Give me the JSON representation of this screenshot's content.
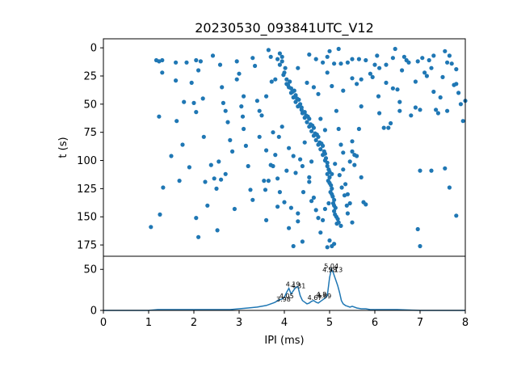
{
  "chart_data": [
    {
      "type": "scatter",
      "title": "20230530_093841UTC_V12",
      "xlabel": "",
      "ylabel": "t (s)",
      "xlim": [
        0,
        8
      ],
      "ylim": [
        185,
        -8
      ],
      "y_inverted": true,
      "yticks": [
        0,
        25,
        50,
        75,
        100,
        125,
        150,
        175
      ],
      "grid": false,
      "color": "#1f77b4",
      "points": [
        [
          1.17,
          11
        ],
        [
          1.23,
          12
        ],
        [
          1.3,
          11
        ],
        [
          1.3,
          22
        ],
        [
          1.23,
          61
        ],
        [
          1.32,
          124
        ],
        [
          1.5,
          96
        ],
        [
          1.6,
          13
        ],
        [
          1.6,
          29
        ],
        [
          1.62,
          65
        ],
        [
          1.68,
          118
        ],
        [
          1.75,
          86
        ],
        [
          1.78,
          48
        ],
        [
          1.84,
          13
        ],
        [
          1.9,
          106
        ],
        [
          1.95,
          31
        ],
        [
          2.05,
          11
        ],
        [
          2.0,
          49
        ],
        [
          2.05,
          57
        ],
        [
          2.05,
          151
        ],
        [
          1.05,
          159
        ],
        [
          1.25,
          148
        ],
        [
          2.1,
          168
        ],
        [
          2.15,
          12
        ],
        [
          2.2,
          45
        ],
        [
          2.22,
          79
        ],
        [
          2.25,
          119
        ],
        [
          2.3,
          140
        ],
        [
          2.38,
          104
        ],
        [
          2.45,
          116
        ],
        [
          2.5,
          125
        ],
        [
          2.52,
          162
        ],
        [
          2.58,
          15
        ],
        [
          2.62,
          35
        ],
        [
          2.65,
          49
        ],
        [
          2.7,
          56
        ],
        [
          2.75,
          66
        ],
        [
          2.8,
          82
        ],
        [
          2.85,
          92
        ],
        [
          2.9,
          143
        ],
        [
          2.95,
          28
        ],
        [
          3.0,
          23
        ],
        [
          3.05,
          52
        ],
        [
          3.08,
          61
        ],
        [
          3.1,
          72
        ],
        [
          3.15,
          87
        ],
        [
          3.2,
          105
        ],
        [
          3.25,
          126
        ],
        [
          3.3,
          135
        ],
        [
          3.35,
          16
        ],
        [
          3.4,
          47
        ],
        [
          3.45,
          56
        ],
        [
          3.5,
          60
        ],
        [
          3.55,
          118
        ],
        [
          3.6,
          153
        ],
        [
          3.65,
          2
        ],
        [
          3.7,
          8
        ],
        [
          3.72,
          30
        ],
        [
          3.75,
          75
        ],
        [
          3.8,
          95
        ],
        [
          2.1,
          20
        ],
        [
          2.42,
          7
        ],
        [
          2.55,
          101
        ],
        [
          2.6,
          117
        ],
        [
          2.7,
          112
        ],
        [
          2.95,
          12
        ],
        [
          3.1,
          43
        ],
        [
          3.3,
          9
        ],
        [
          3.45,
          79
        ],
        [
          3.6,
          43
        ],
        [
          3.9,
          5
        ],
        [
          3.95,
          12
        ],
        [
          4.0,
          22
        ],
        [
          4.05,
          28
        ],
        [
          4.1,
          35
        ],
        [
          4.15,
          40
        ],
        [
          4.2,
          44
        ],
        [
          4.25,
          48
        ],
        [
          4.3,
          52
        ],
        [
          4.4,
          58
        ],
        [
          4.45,
          62
        ],
        [
          4.5,
          66
        ],
        [
          4.55,
          70
        ],
        [
          4.6,
          74
        ],
        [
          4.65,
          78
        ],
        [
          4.7,
          82
        ],
        [
          4.75,
          86
        ],
        [
          4.8,
          90
        ],
        [
          4.85,
          95
        ],
        [
          4.9,
          100
        ],
        [
          4.95,
          105
        ],
        [
          5.0,
          110
        ],
        [
          5.0,
          115
        ],
        [
          5.0,
          120
        ],
        [
          5.05,
          125
        ],
        [
          5.05,
          130
        ],
        [
          5.1,
          135
        ],
        [
          5.1,
          140
        ],
        [
          5.1,
          145
        ],
        [
          5.15,
          150
        ],
        [
          5.2,
          155
        ],
        [
          5.25,
          158
        ],
        [
          4.02,
          18
        ],
        [
          4.12,
          30
        ],
        [
          4.22,
          38
        ],
        [
          4.32,
          46
        ],
        [
          4.38,
          55
        ],
        [
          4.48,
          60
        ],
        [
          4.58,
          68
        ],
        [
          4.68,
          76
        ],
        [
          4.78,
          84
        ],
        [
          4.88,
          92
        ],
        [
          4.92,
          98
        ],
        [
          4.98,
          108
        ],
        [
          4.97,
          118
        ],
        [
          5.02,
          128
        ],
        [
          5.08,
          138
        ],
        [
          5.12,
          148
        ],
        [
          5.18,
          152
        ],
        [
          4.05,
          32
        ],
        [
          4.15,
          36
        ],
        [
          4.25,
          42
        ],
        [
          4.35,
          50
        ],
        [
          4.45,
          57
        ],
        [
          4.55,
          63
        ],
        [
          4.65,
          71
        ],
        [
          4.75,
          79
        ],
        [
          4.85,
          87
        ],
        [
          4.95,
          102
        ],
        [
          5.05,
          112
        ],
        [
          3.85,
          10
        ],
        [
          3.98,
          24
        ],
        [
          4.08,
          33
        ],
        [
          4.18,
          39
        ],
        [
          4.28,
          45
        ],
        [
          4.38,
          53
        ],
        [
          4.52,
          61
        ],
        [
          4.62,
          69
        ],
        [
          4.72,
          77
        ],
        [
          4.82,
          85
        ],
        [
          4.9,
          94
        ],
        [
          4.95,
          112
        ],
        [
          5.03,
          122
        ],
        [
          5.07,
          132
        ],
        [
          5.13,
          142
        ],
        [
          5.16,
          156
        ],
        [
          3.95,
          8
        ],
        [
          3.9,
          15
        ],
        [
          4.3,
          18
        ],
        [
          4.5,
          31
        ],
        [
          3.8,
          28
        ],
        [
          3.6,
          91
        ],
        [
          3.7,
          104
        ],
        [
          3.85,
          116
        ],
        [
          3.9,
          128
        ],
        [
          4.0,
          137
        ],
        [
          4.15,
          142
        ],
        [
          4.3,
          154
        ],
        [
          4.42,
          128
        ],
        [
          4.6,
          101
        ],
        [
          3.85,
          141
        ],
        [
          4.1,
          160
        ],
        [
          4.3,
          147
        ],
        [
          4.65,
          133
        ],
        [
          4.55,
          115
        ],
        [
          4.75,
          151
        ],
        [
          4.8,
          164
        ],
        [
          4.4,
          172
        ],
        [
          4.2,
          176
        ],
        [
          5.0,
          171
        ],
        [
          5.05,
          176
        ],
        [
          5.1,
          174
        ],
        [
          4.95,
          177
        ],
        [
          5.3,
          108
        ],
        [
          5.35,
          121
        ],
        [
          5.4,
          130
        ],
        [
          5.45,
          138
        ],
        [
          5.5,
          92
        ],
        [
          5.55,
          104
        ],
        [
          5.6,
          96
        ],
        [
          5.65,
          72
        ],
        [
          5.7,
          115
        ],
        [
          5.75,
          137
        ],
        [
          5.8,
          139
        ],
        [
          5.4,
          147
        ],
        [
          5.5,
          155
        ],
        [
          5.3,
          93
        ],
        [
          5.25,
          86
        ],
        [
          5.2,
          72
        ],
        [
          5.15,
          56
        ],
        [
          5.05,
          34
        ],
        [
          4.95,
          22
        ],
        [
          4.85,
          13
        ],
        [
          5.0,
          3
        ],
        [
          5.2,
          1
        ],
        [
          5.4,
          13
        ],
        [
          5.5,
          27
        ],
        [
          5.6,
          32
        ],
        [
          5.7,
          28
        ],
        [
          5.8,
          11
        ],
        [
          5.9,
          23
        ],
        [
          6.0,
          15
        ],
        [
          6.1,
          58
        ],
        [
          6.2,
          71
        ],
        [
          6.3,
          71
        ],
        [
          6.35,
          67
        ],
        [
          6.4,
          9
        ],
        [
          6.5,
          37
        ],
        [
          6.6,
          20
        ],
        [
          6.55,
          48
        ],
        [
          6.7,
          11
        ],
        [
          6.75,
          13
        ],
        [
          6.8,
          60
        ],
        [
          6.9,
          30
        ],
        [
          7.0,
          55
        ],
        [
          7.05,
          9
        ],
        [
          7.15,
          25
        ],
        [
          7.25,
          18
        ],
        [
          7.3,
          39
        ],
        [
          7.35,
          55
        ],
        [
          7.4,
          58
        ],
        [
          7.5,
          26
        ],
        [
          7.55,
          3
        ],
        [
          7.6,
          56
        ],
        [
          7.65,
          7
        ],
        [
          7.7,
          14
        ],
        [
          7.75,
          33
        ],
        [
          7.8,
          32
        ],
        [
          7.85,
          40
        ],
        [
          7.9,
          50
        ],
        [
          7.95,
          65
        ],
        [
          8.0,
          47
        ],
        [
          7.0,
          109
        ],
        [
          7.25,
          109
        ],
        [
          7.55,
          107
        ],
        [
          7.65,
          124
        ],
        [
          7.8,
          149
        ],
        [
          6.95,
          161
        ],
        [
          7.0,
          176
        ],
        [
          6.05,
          7
        ],
        [
          6.45,
          1
        ],
        [
          6.1,
          18
        ],
        [
          6.4,
          36
        ],
        [
          6.65,
          8
        ],
        [
          7.1,
          22
        ],
        [
          7.3,
          7
        ],
        [
          7.6,
          13
        ],
        [
          7.45,
          44
        ],
        [
          7.8,
          19
        ],
        [
          7.2,
          11
        ],
        [
          5.7,
          52
        ],
        [
          6.25,
          31
        ],
        [
          5.5,
          10
        ],
        [
          6.9,
          53
        ],
        [
          6.55,
          56
        ],
        [
          6.95,
          12
        ],
        [
          6.08,
          43
        ],
        [
          5.3,
          38
        ],
        [
          5.95,
          26
        ],
        [
          6.25,
          15
        ],
        [
          4.95,
          8
        ],
        [
          4.7,
          10
        ],
        [
          5.1,
          14
        ],
        [
          5.25,
          14
        ],
        [
          5.65,
          10
        ],
        [
          4.55,
          6
        ],
        [
          4.65,
          35
        ],
        [
          4.75,
          41
        ],
        [
          4.8,
          63
        ],
        [
          4.9,
          73
        ],
        [
          4.45,
          84
        ],
        [
          4.2,
          96
        ],
        [
          4.1,
          89
        ],
        [
          3.95,
          70
        ],
        [
          3.88,
          79
        ],
        [
          3.75,
          105
        ],
        [
          3.65,
          118
        ],
        [
          3.58,
          126
        ],
        [
          4.05,
          109
        ],
        [
          4.25,
          111
        ],
        [
          4.35,
          99
        ],
        [
          4.4,
          105
        ],
        [
          4.55,
          119
        ],
        [
          4.6,
          136
        ],
        [
          4.7,
          144
        ],
        [
          4.85,
          153
        ],
        [
          4.9,
          143
        ],
        [
          4.98,
          138
        ],
        [
          5.12,
          103
        ],
        [
          5.22,
          113
        ],
        [
          5.27,
          124
        ],
        [
          5.33,
          131
        ],
        [
          5.38,
          140
        ],
        [
          5.45,
          101
        ],
        [
          5.5,
          83
        ],
        [
          5.55,
          95
        ]
      ]
    },
    {
      "type": "line",
      "title": "",
      "xlabel": "IPI (ms)",
      "ylabel": "",
      "xlim": [
        0,
        8
      ],
      "ylim": [
        0,
        66
      ],
      "xticks": [
        0,
        1,
        2,
        3,
        4,
        5,
        6,
        7,
        8
      ],
      "yticks": [
        0,
        50
      ],
      "grid": false,
      "color": "#1f77b4",
      "series": [
        {
          "x": [
            0,
            0.5,
            1.0,
            1.2,
            1.5,
            2.0,
            2.5,
            2.8,
            3.0,
            3.2,
            3.4,
            3.5,
            3.6,
            3.7,
            3.75,
            3.8,
            3.85,
            3.9,
            3.95,
            4.0,
            4.05,
            4.1,
            4.15,
            4.2,
            4.25,
            4.3,
            4.35,
            4.4,
            4.45,
            4.5,
            4.55,
            4.6,
            4.65,
            4.7,
            4.75,
            4.8,
            4.85,
            4.9,
            4.95,
            5.0,
            5.04,
            5.08,
            5.13,
            5.18,
            5.22,
            5.26,
            5.3,
            5.35,
            5.4,
            5.45,
            5.5,
            5.55,
            5.6,
            5.7,
            5.8,
            5.9,
            6.0,
            6.2,
            6.5,
            7.0,
            7.5,
            8.0
          ],
          "values": [
            0,
            0,
            0,
            1,
            1,
            1,
            1,
            1,
            2,
            3,
            4,
            5,
            6,
            8,
            9,
            10,
            12,
            13,
            14,
            16,
            22,
            27,
            20,
            24,
            28,
            29,
            18,
            12,
            10,
            8,
            9,
            11,
            12,
            10,
            9,
            11,
            13,
            15,
            18,
            40,
            50,
            46,
            38,
            30,
            22,
            12,
            8,
            6,
            5,
            4,
            5,
            4,
            3,
            2,
            2,
            1,
            1,
            1,
            1,
            0,
            0,
            0
          ]
        }
      ],
      "annotations": [
        {
          "x": 5.04,
          "y": 50,
          "text": "5.04"
        },
        {
          "x": 5.13,
          "y": 46,
          "text": "5.13"
        },
        {
          "x": 5.0,
          "y": 46,
          "text": "4.98"
        },
        {
          "x": 4.19,
          "y": 28,
          "text": "4.19"
        },
        {
          "x": 4.31,
          "y": 26,
          "text": "4.31"
        },
        {
          "x": 4.05,
          "y": 14,
          "text": "4.05"
        },
        {
          "x": 3.98,
          "y": 10,
          "text": "3.98"
        },
        {
          "x": 4.67,
          "y": 12,
          "text": "4.67"
        },
        {
          "x": 4.82,
          "y": 16,
          "text": "4.8"
        },
        {
          "x": 4.88,
          "y": 14,
          "text": "4.89"
        }
      ]
    }
  ]
}
